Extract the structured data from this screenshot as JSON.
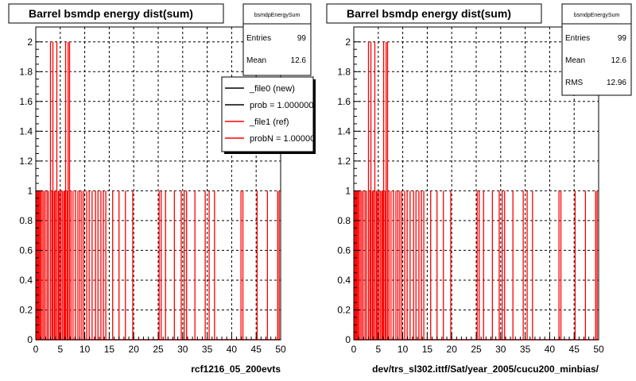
{
  "colors": {
    "hist": "#ff0000",
    "frame": "#000000",
    "grid": "#000000",
    "background": "#ffffff"
  },
  "chart_data": [
    {
      "type": "bar",
      "title": "Barrel bsmdp energy dist(sum)",
      "xlabel": "rcf1216_05_200evts",
      "ylabel": "",
      "xlim": [
        0,
        50
      ],
      "ylim": [
        0,
        2.1
      ],
      "x_ticks": [
        "0",
        "5",
        "10",
        "15",
        "20",
        "25",
        "30",
        "35",
        "40",
        "45",
        "50"
      ],
      "y_ticks": [
        "0",
        "0.2",
        "0.4",
        "0.6",
        "0.8",
        "1",
        "1.2",
        "1.4",
        "1.6",
        "1.8",
        "2"
      ],
      "grid": true,
      "stats": {
        "name": "bsmdpEnergySum",
        "rows": [
          {
            "label": "Entries",
            "value": "99"
          },
          {
            "label": "Mean",
            "value": "12.6"
          }
        ]
      },
      "legend": {
        "placement": "top-right",
        "entries": [
          {
            "label": "_file0 (new)",
            "color": "#000000"
          },
          {
            "label": "prob = 1.000000",
            "color": "#000000"
          },
          {
            "label": "_file1 (ref)",
            "color": "#ff0000"
          },
          {
            "label": "probN = 1.000000",
            "color": "#ff0000"
          }
        ]
      },
      "series": [
        {
          "bins": [
            [
              0.2,
              1
            ],
            [
              0.4,
              1
            ],
            [
              0.6,
              1
            ],
            [
              0.8,
              1
            ],
            [
              1.0,
              1
            ],
            [
              1.3,
              1
            ],
            [
              1.6,
              1
            ],
            [
              1.9,
              1
            ],
            [
              2.3,
              1
            ],
            [
              2.6,
              1
            ],
            [
              3.0,
              2
            ],
            [
              3.3,
              1
            ],
            [
              3.5,
              2
            ],
            [
              3.8,
              1
            ],
            [
              4.0,
              1
            ],
            [
              4.3,
              2
            ],
            [
              4.6,
              1
            ],
            [
              4.8,
              1
            ],
            [
              5.1,
              1
            ],
            [
              5.4,
              1
            ],
            [
              5.7,
              1
            ],
            [
              5.9,
              1
            ],
            [
              6.1,
              2
            ],
            [
              6.4,
              1
            ],
            [
              6.6,
              2
            ],
            [
              6.9,
              2
            ],
            [
              7.2,
              1
            ],
            [
              7.6,
              1
            ],
            [
              8.1,
              1
            ],
            [
              8.6,
              1
            ],
            [
              9.0,
              1
            ],
            [
              9.4,
              1
            ],
            [
              9.8,
              1
            ],
            [
              10.4,
              1
            ],
            [
              10.9,
              1
            ],
            [
              11.5,
              1
            ],
            [
              12.2,
              1
            ],
            [
              12.7,
              1
            ],
            [
              13.3,
              1
            ],
            [
              13.8,
              1
            ],
            [
              14.3,
              1
            ],
            [
              15.7,
              1
            ],
            [
              17.0,
              1
            ],
            [
              18.3,
              1
            ],
            [
              19.8,
              1
            ],
            [
              25.2,
              1
            ],
            [
              25.6,
              1
            ],
            [
              26.5,
              1
            ],
            [
              28.3,
              1
            ],
            [
              29.7,
              1
            ],
            [
              30.3,
              1
            ],
            [
              30.8,
              1
            ],
            [
              32.5,
              1
            ],
            [
              34.6,
              1
            ],
            [
              35.4,
              1
            ],
            [
              36.5,
              1
            ],
            [
              41.9,
              1
            ],
            [
              42.3,
              1
            ],
            [
              45.2,
              1
            ],
            [
              47.3,
              1
            ],
            [
              49.4,
              1
            ],
            [
              49.7,
              1
            ]
          ]
        }
      ]
    },
    {
      "type": "bar",
      "title": "Barrel bsmdp energy dist(sum)",
      "xlabel": "dev/trs_sl302.ittf/Sat/year_2005/cucu200_minbias/",
      "ylabel": "",
      "xlim": [
        0,
        50
      ],
      "ylim": [
        0,
        2.1
      ],
      "x_ticks": [
        "0",
        "5",
        "10",
        "15",
        "20",
        "25",
        "30",
        "35",
        "40",
        "45",
        "50"
      ],
      "y_ticks": [
        "0",
        "0.2",
        "0.4",
        "0.6",
        "0.8",
        "1",
        "1.2",
        "1.4",
        "1.6",
        "1.8",
        "2"
      ],
      "grid": true,
      "stats": {
        "name": "bsmdpEnergySum",
        "rows": [
          {
            "label": "Entries",
            "value": "99"
          },
          {
            "label": "Mean",
            "value": "12.6"
          },
          {
            "label": "RMS",
            "value": "12.96"
          }
        ]
      },
      "series": [
        {
          "bins": [
            [
              0.2,
              1
            ],
            [
              0.4,
              1
            ],
            [
              0.6,
              1
            ],
            [
              0.8,
              1
            ],
            [
              1.0,
              1
            ],
            [
              1.3,
              1
            ],
            [
              1.6,
              1
            ],
            [
              1.9,
              1
            ],
            [
              2.3,
              1
            ],
            [
              2.6,
              1
            ],
            [
              3.0,
              2
            ],
            [
              3.3,
              1
            ],
            [
              3.5,
              2
            ],
            [
              3.8,
              1
            ],
            [
              4.0,
              1
            ],
            [
              4.3,
              2
            ],
            [
              4.6,
              1
            ],
            [
              4.8,
              1
            ],
            [
              5.1,
              1
            ],
            [
              5.4,
              1
            ],
            [
              5.7,
              1
            ],
            [
              5.9,
              1
            ],
            [
              6.1,
              2
            ],
            [
              6.4,
              1
            ],
            [
              6.6,
              2
            ],
            [
              6.9,
              2
            ],
            [
              7.2,
              1
            ],
            [
              7.6,
              1
            ],
            [
              8.1,
              1
            ],
            [
              8.6,
              1
            ],
            [
              9.0,
              1
            ],
            [
              9.4,
              1
            ],
            [
              9.8,
              1
            ],
            [
              10.4,
              1
            ],
            [
              10.9,
              1
            ],
            [
              11.5,
              1
            ],
            [
              12.2,
              1
            ],
            [
              12.7,
              1
            ],
            [
              13.3,
              1
            ],
            [
              13.8,
              1
            ],
            [
              14.3,
              1
            ],
            [
              15.7,
              1
            ],
            [
              17.0,
              1
            ],
            [
              18.3,
              1
            ],
            [
              19.8,
              1
            ],
            [
              25.2,
              1
            ],
            [
              25.6,
              1
            ],
            [
              26.5,
              1
            ],
            [
              28.3,
              1
            ],
            [
              29.7,
              1
            ],
            [
              30.3,
              1
            ],
            [
              30.8,
              1
            ],
            [
              32.5,
              1
            ],
            [
              34.6,
              1
            ],
            [
              35.4,
              1
            ],
            [
              36.5,
              1
            ],
            [
              41.9,
              1
            ],
            [
              42.3,
              1
            ],
            [
              45.2,
              1
            ],
            [
              47.3,
              1
            ],
            [
              49.4,
              1
            ],
            [
              49.7,
              1
            ]
          ]
        }
      ]
    }
  ]
}
